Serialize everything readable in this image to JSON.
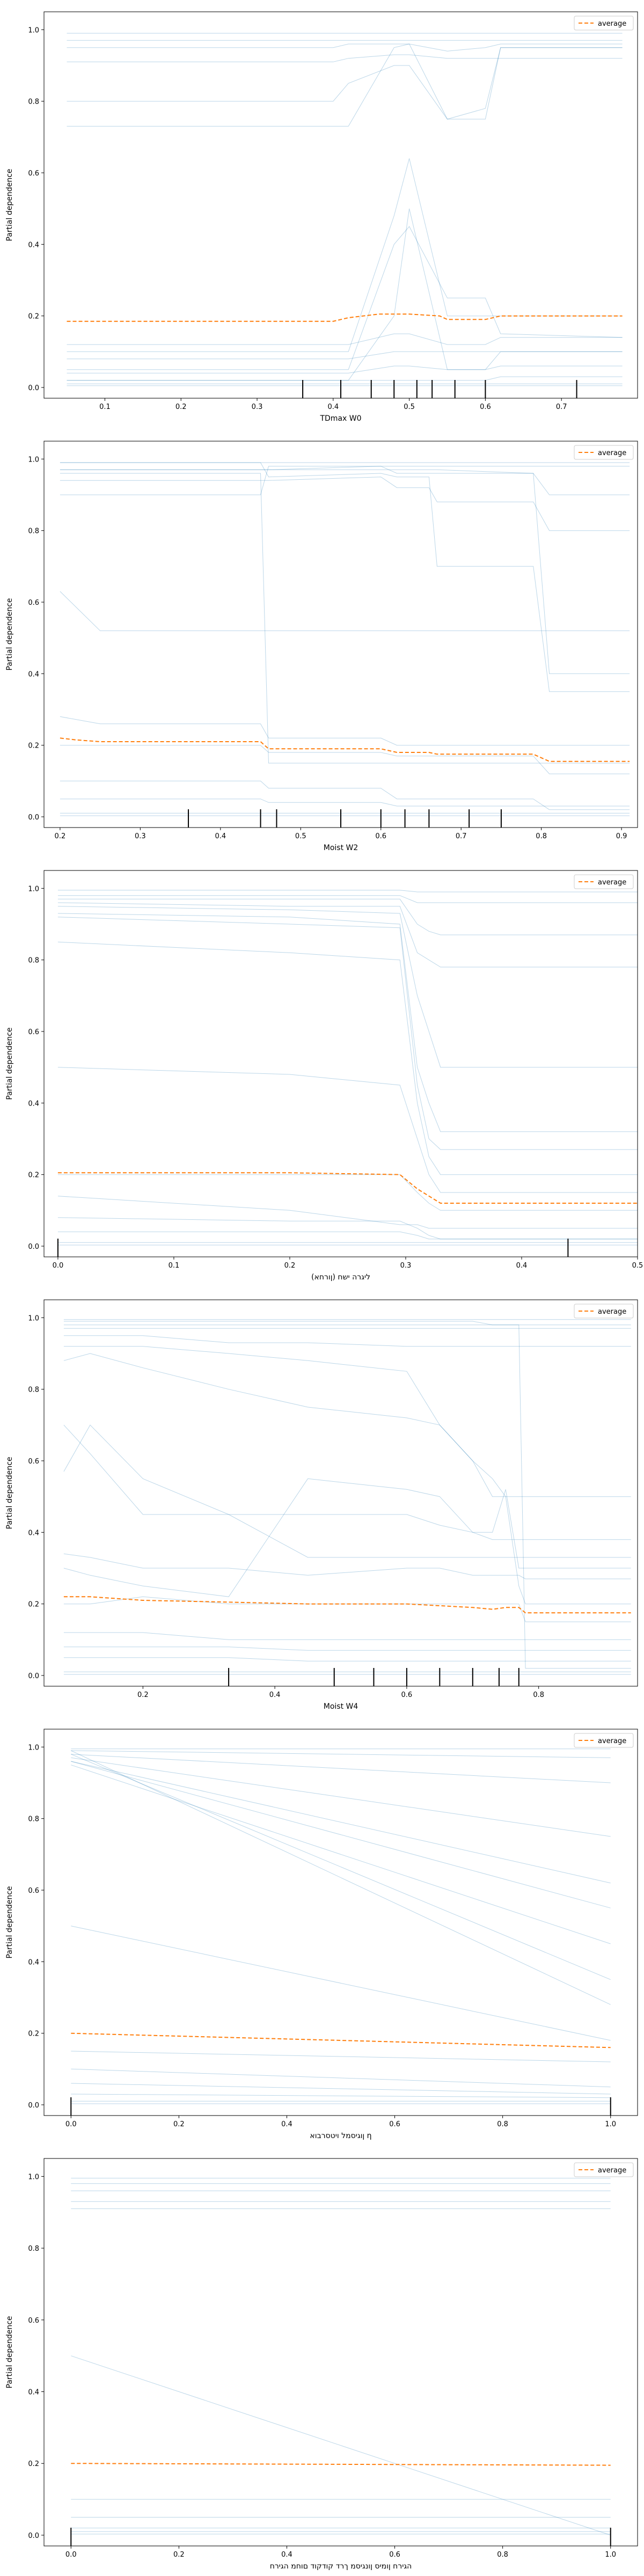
{
  "chart_data": [
    {
      "type": "line",
      "xlabel": "TDmax W0",
      "ylabel": "Partial dependence",
      "xlim": [
        0.02,
        0.8
      ],
      "ylim": [
        -0.03,
        1.05
      ],
      "xticks": [
        "0.1",
        "0.2",
        "0.3",
        "0.4",
        "0.5",
        "0.6",
        "0.7"
      ],
      "yticks": [
        "0.0",
        "0.2",
        "0.4",
        "0.6",
        "0.8",
        "1.0"
      ],
      "legend": {
        "position": "top-right",
        "label": "average"
      },
      "colors": {
        "ice": "#1f77b4",
        "average": "#ff7f0e",
        "rug": "#000000"
      },
      "rug": [
        0.36,
        0.41,
        0.45,
        0.48,
        0.51,
        0.53,
        0.56,
        0.6,
        0.72
      ],
      "ice_x": [
        0.05,
        0.4,
        0.42,
        0.48,
        0.5,
        0.55,
        0.6,
        0.62,
        0.78
      ],
      "ice_curves": [
        [
          0.99,
          0.99,
          0.99,
          0.99,
          0.99,
          0.99,
          0.99,
          0.99,
          0.99
        ],
        [
          0.97,
          0.97,
          0.97,
          0.97,
          0.97,
          0.97,
          0.97,
          0.97,
          0.97
        ],
        [
          0.95,
          0.95,
          0.96,
          0.96,
          0.96,
          0.94,
          0.95,
          0.96,
          0.96
        ],
        [
          0.91,
          0.91,
          0.92,
          0.93,
          0.93,
          0.92,
          0.92,
          0.92,
          0.92
        ],
        [
          0.8,
          0.8,
          0.85,
          0.9,
          0.9,
          0.75,
          0.78,
          0.95,
          0.95
        ],
        [
          0.73,
          0.73,
          0.73,
          0.95,
          0.96,
          0.75,
          0.75,
          0.95,
          0.95
        ],
        [
          0.1,
          0.1,
          0.1,
          0.48,
          0.64,
          0.2,
          0.2,
          0.2,
          0.2
        ],
        [
          0.05,
          0.05,
          0.05,
          0.4,
          0.45,
          0.25,
          0.25,
          0.15,
          0.14
        ],
        [
          0.02,
          0.02,
          0.02,
          0.2,
          0.5,
          0.05,
          0.05,
          0.1,
          0.1
        ],
        [
          0.08,
          0.08,
          0.08,
          0.1,
          0.1,
          0.1,
          0.1,
          0.1,
          0.1
        ],
        [
          0.12,
          0.12,
          0.12,
          0.15,
          0.15,
          0.12,
          0.12,
          0.14,
          0.14
        ],
        [
          0.04,
          0.04,
          0.04,
          0.06,
          0.06,
          0.05,
          0.05,
          0.06,
          0.06
        ],
        [
          0.01,
          0.01,
          0.01,
          0.01,
          0.01,
          0.01,
          0.01,
          0.01,
          0.01
        ],
        [
          0.005,
          0.005,
          0.005,
          0.005,
          0.005,
          0.005,
          0.005,
          0.005,
          0.005
        ],
        [
          0.02,
          0.02,
          0.02,
          0.02,
          0.02,
          0.02,
          0.02,
          0.03,
          0.03
        ]
      ],
      "average": {
        "x": [
          0.05,
          0.2,
          0.4,
          0.42,
          0.46,
          0.5,
          0.54,
          0.55,
          0.6,
          0.62,
          0.78
        ],
        "y": [
          0.185,
          0.185,
          0.185,
          0.195,
          0.205,
          0.205,
          0.2,
          0.19,
          0.19,
          0.2,
          0.2
        ]
      }
    },
    {
      "type": "line",
      "xlabel": "Moist W2",
      "ylabel": "Partial dependence",
      "xlim": [
        0.18,
        0.92
      ],
      "ylim": [
        -0.03,
        1.05
      ],
      "xticks": [
        "0.2",
        "0.3",
        "0.4",
        "0.5",
        "0.6",
        "0.7",
        "0.8",
        "0.9"
      ],
      "yticks": [
        "0.0",
        "0.2",
        "0.4",
        "0.6",
        "0.8",
        "1.0"
      ],
      "legend": {
        "position": "top-right",
        "label": "average"
      },
      "colors": {
        "ice": "#1f77b4",
        "average": "#ff7f0e",
        "rug": "#000000"
      },
      "rug": [
        0.36,
        0.45,
        0.47,
        0.55,
        0.6,
        0.63,
        0.66,
        0.71,
        0.75
      ],
      "ice_x": [
        0.2,
        0.25,
        0.45,
        0.46,
        0.6,
        0.62,
        0.66,
        0.67,
        0.79,
        0.81,
        0.91
      ],
      "ice_curves": [
        [
          0.99,
          0.99,
          0.99,
          0.99,
          0.99,
          0.99,
          0.99,
          0.99,
          0.99,
          0.99,
          0.99
        ],
        [
          0.97,
          0.97,
          0.97,
          0.97,
          0.98,
          0.96,
          0.96,
          0.96,
          0.96,
          0.9,
          0.9
        ],
        [
          0.94,
          0.94,
          0.94,
          0.94,
          0.95,
          0.92,
          0.92,
          0.88,
          0.88,
          0.8,
          0.8
        ],
        [
          0.9,
          0.9,
          0.9,
          0.98,
          0.98,
          0.98,
          0.98,
          0.98,
          0.98,
          0.98,
          0.98
        ],
        [
          0.63,
          0.52,
          0.52,
          0.52,
          0.52,
          0.52,
          0.52,
          0.52,
          0.52,
          0.52,
          0.52
        ],
        [
          0.28,
          0.26,
          0.26,
          0.22,
          0.22,
          0.2,
          0.2,
          0.2,
          0.2,
          0.2,
          0.2
        ],
        [
          0.2,
          0.2,
          0.2,
          0.18,
          0.18,
          0.17,
          0.17,
          0.17,
          0.17,
          0.12,
          0.12
        ],
        [
          0.99,
          0.99,
          0.99,
          0.95,
          0.96,
          0.95,
          0.95,
          0.7,
          0.7,
          0.35,
          0.35
        ],
        [
          0.96,
          0.96,
          0.96,
          0.15,
          0.15,
          0.15,
          0.15,
          0.15,
          0.15,
          0.15,
          0.15
        ],
        [
          0.97,
          0.97,
          0.97,
          0.97,
          0.97,
          0.97,
          0.97,
          0.97,
          0.96,
          0.4,
          0.4
        ],
        [
          0.1,
          0.1,
          0.1,
          0.08,
          0.08,
          0.05,
          0.05,
          0.05,
          0.05,
          0.02,
          0.02
        ],
        [
          0.05,
          0.05,
          0.05,
          0.04,
          0.04,
          0.03,
          0.03,
          0.03,
          0.03,
          0.03,
          0.03
        ],
        [
          0.01,
          0.01,
          0.01,
          0.01,
          0.01,
          0.01,
          0.01,
          0.01,
          0.01,
          0.01,
          0.01
        ],
        [
          0.003,
          0.003,
          0.003,
          0.003,
          0.003,
          0.003,
          0.003,
          0.003,
          0.003,
          0.003,
          0.003
        ]
      ],
      "average": {
        "x": [
          0.2,
          0.22,
          0.25,
          0.45,
          0.46,
          0.6,
          0.62,
          0.66,
          0.67,
          0.79,
          0.81,
          0.91
        ],
        "y": [
          0.22,
          0.215,
          0.21,
          0.21,
          0.19,
          0.19,
          0.18,
          0.18,
          0.175,
          0.175,
          0.155,
          0.155
        ]
      }
    },
    {
      "type": "line",
      "xlabel": "ליגרה ישח (ןורחא)",
      "ylabel": "Partial dependence",
      "xlim": [
        -0.012,
        0.5
      ],
      "ylim": [
        -0.03,
        1.05
      ],
      "xticks": [
        "0.0",
        "0.1",
        "0.2",
        "0.3",
        "0.4",
        "0.5"
      ],
      "yticks": [
        "0.0",
        "0.2",
        "0.4",
        "0.6",
        "0.8",
        "1.0"
      ],
      "legend": {
        "position": "top-right",
        "label": "average"
      },
      "colors": {
        "ice": "#1f77b4",
        "average": "#ff7f0e",
        "rug": "#000000"
      },
      "rug": [
        0.0,
        0.44
      ],
      "ice_x": [
        0.0,
        0.2,
        0.295,
        0.31,
        0.32,
        0.33,
        0.5
      ],
      "ice_curves": [
        [
          0.995,
          0.995,
          0.995,
          0.99,
          0.99,
          0.99,
          0.99
        ],
        [
          0.98,
          0.98,
          0.98,
          0.96,
          0.96,
          0.96,
          0.96
        ],
        [
          0.97,
          0.97,
          0.97,
          0.9,
          0.88,
          0.87,
          0.87
        ],
        [
          0.96,
          0.95,
          0.95,
          0.82,
          0.8,
          0.78,
          0.78
        ],
        [
          0.95,
          0.94,
          0.93,
          0.7,
          0.6,
          0.5,
          0.5
        ],
        [
          0.93,
          0.92,
          0.9,
          0.5,
          0.4,
          0.32,
          0.32
        ],
        [
          0.92,
          0.9,
          0.89,
          0.45,
          0.3,
          0.27,
          0.27
        ],
        [
          0.85,
          0.82,
          0.8,
          0.4,
          0.25,
          0.2,
          0.2
        ],
        [
          0.5,
          0.48,
          0.45,
          0.3,
          0.2,
          0.15,
          0.15
        ],
        [
          0.2,
          0.2,
          0.2,
          0.15,
          0.12,
          0.1,
          0.1
        ],
        [
          0.14,
          0.1,
          0.06,
          0.06,
          0.05,
          0.05,
          0.05
        ],
        [
          0.08,
          0.07,
          0.07,
          0.05,
          0.03,
          0.02,
          0.02
        ],
        [
          0.04,
          0.04,
          0.04,
          0.03,
          0.02,
          0.02,
          0.02
        ],
        [
          0.01,
          0.01,
          0.01,
          0.01,
          0.01,
          0.01,
          0.01
        ],
        [
          0.003,
          0.003,
          0.003,
          0.003,
          0.003,
          0.003,
          0.003
        ]
      ],
      "average": {
        "x": [
          0.0,
          0.2,
          0.295,
          0.31,
          0.33,
          0.5
        ],
        "y": [
          0.205,
          0.205,
          0.2,
          0.16,
          0.12,
          0.12
        ]
      }
    },
    {
      "type": "line",
      "xlabel": "Moist W4",
      "ylabel": "Partial dependence",
      "xlim": [
        0.05,
        0.95
      ],
      "ylim": [
        -0.03,
        1.05
      ],
      "xticks": [
        "0.2",
        "0.4",
        "0.6",
        "0.8"
      ],
      "yticks": [
        "0.0",
        "0.2",
        "0.4",
        "0.6",
        "0.8",
        "1.0"
      ],
      "legend": {
        "position": "top-right",
        "label": "average"
      },
      "colors": {
        "ice": "#1f77b4",
        "average": "#ff7f0e",
        "rug": "#000000"
      },
      "rug": [
        0.33,
        0.49,
        0.55,
        0.6,
        0.65,
        0.7,
        0.74,
        0.77
      ],
      "ice_x": [
        0.08,
        0.12,
        0.2,
        0.33,
        0.45,
        0.6,
        0.65,
        0.7,
        0.73,
        0.75,
        0.77,
        0.78,
        0.94
      ],
      "ice_curves": [
        [
          0.995,
          0.995,
          0.995,
          0.995,
          0.995,
          0.995,
          0.995,
          0.995,
          0.995,
          0.995,
          0.995,
          0.995,
          0.995
        ],
        [
          0.98,
          0.98,
          0.98,
          0.98,
          0.98,
          0.98,
          0.98,
          0.98,
          0.98,
          0.98,
          0.98,
          0.98,
          0.98
        ],
        [
          0.97,
          0.97,
          0.97,
          0.97,
          0.97,
          0.97,
          0.97,
          0.97,
          0.97,
          0.97,
          0.97,
          0.97,
          0.97
        ],
        [
          0.95,
          0.95,
          0.95,
          0.93,
          0.93,
          0.92,
          0.92,
          0.92,
          0.92,
          0.92,
          0.92,
          0.92,
          0.92
        ],
        [
          0.92,
          0.92,
          0.92,
          0.9,
          0.88,
          0.85,
          0.7,
          0.6,
          0.5,
          0.5,
          0.5,
          0.5,
          0.5
        ],
        [
          0.88,
          0.9,
          0.86,
          0.8,
          0.75,
          0.72,
          0.7,
          0.6,
          0.55,
          0.5,
          0.25,
          0.2,
          0.2
        ],
        [
          0.7,
          0.62,
          0.45,
          0.45,
          0.45,
          0.45,
          0.42,
          0.4,
          0.38,
          0.38,
          0.38,
          0.38,
          0.38
        ],
        [
          0.57,
          0.7,
          0.55,
          0.45,
          0.33,
          0.33,
          0.33,
          0.33,
          0.33,
          0.33,
          0.33,
          0.33,
          0.33
        ],
        [
          0.34,
          0.33,
          0.3,
          0.3,
          0.28,
          0.3,
          0.3,
          0.28,
          0.28,
          0.28,
          0.28,
          0.27,
          0.27
        ],
        [
          0.3,
          0.28,
          0.25,
          0.22,
          0.55,
          0.52,
          0.5,
          0.4,
          0.4,
          0.52,
          0.3,
          0.3,
          0.3
        ],
        [
          0.2,
          0.2,
          0.22,
          0.2,
          0.2,
          0.2,
          0.2,
          0.2,
          0.2,
          0.2,
          0.2,
          0.15,
          0.15
        ],
        [
          0.12,
          0.12,
          0.12,
          0.1,
          0.1,
          0.1,
          0.1,
          0.1,
          0.1,
          0.1,
          0.1,
          0.1,
          0.1
        ],
        [
          0.08,
          0.08,
          0.08,
          0.08,
          0.07,
          0.07,
          0.07,
          0.07,
          0.07,
          0.07,
          0.07,
          0.07,
          0.07
        ],
        [
          0.05,
          0.05,
          0.05,
          0.05,
          0.04,
          0.04,
          0.04,
          0.04,
          0.04,
          0.04,
          0.04,
          0.04,
          0.04
        ],
        [
          0.99,
          0.99,
          0.99,
          0.99,
          0.99,
          0.99,
          0.99,
          0.99,
          0.98,
          0.98,
          0.98,
          0.02,
          0.02
        ],
        [
          0.01,
          0.01,
          0.01,
          0.01,
          0.01,
          0.01,
          0.01,
          0.01,
          0.01,
          0.01,
          0.01,
          0.01,
          0.01
        ],
        [
          0.003,
          0.003,
          0.003,
          0.003,
          0.003,
          0.003,
          0.003,
          0.003,
          0.003,
          0.003,
          0.003,
          0.003,
          0.003
        ]
      ],
      "average": {
        "x": [
          0.08,
          0.12,
          0.2,
          0.33,
          0.45,
          0.6,
          0.65,
          0.7,
          0.73,
          0.75,
          0.77,
          0.78,
          0.94
        ],
        "y": [
          0.22,
          0.22,
          0.21,
          0.205,
          0.2,
          0.2,
          0.195,
          0.19,
          0.185,
          0.19,
          0.19,
          0.175,
          0.175
        ]
      }
    },
    {
      "type": "line",
      "xlabel": "ןוגיסמל ויטסרבוא η",
      "ylabel": "Partial dependence",
      "xlim": [
        -0.05,
        1.05
      ],
      "ylim": [
        -0.03,
        1.05
      ],
      "xticks": [
        "0.0",
        "0.2",
        "0.4",
        "0.6",
        "0.8",
        "1.0"
      ],
      "yticks": [
        "0.0",
        "0.2",
        "0.4",
        "0.6",
        "0.8",
        "1.0"
      ],
      "legend": {
        "position": "top-right",
        "label": "average"
      },
      "colors": {
        "ice": "#1f77b4",
        "average": "#ff7f0e",
        "rug": "#000000"
      },
      "rug": [
        0.0,
        1.0
      ],
      "ice_x": [
        0.0,
        1.0
      ],
      "ice_curves": [
        [
          0.995,
          0.995
        ],
        [
          0.99,
          0.97
        ],
        [
          0.98,
          0.9
        ],
        [
          0.97,
          0.75
        ],
        [
          0.96,
          0.55
        ],
        [
          0.95,
          0.45
        ],
        [
          0.98,
          0.35
        ],
        [
          0.99,
          0.28
        ],
        [
          0.96,
          0.62
        ],
        [
          0.5,
          0.18
        ],
        [
          0.15,
          0.12
        ],
        [
          0.1,
          0.05
        ],
        [
          0.06,
          0.03
        ],
        [
          0.03,
          0.02
        ],
        [
          0.01,
          0.01
        ],
        [
          0.003,
          0.003
        ]
      ],
      "average": {
        "x": [
          0.0,
          1.0
        ],
        "y": [
          0.2,
          0.16
        ]
      }
    },
    {
      "type": "line",
      "xlabel": "הגירח ןומיס ןונגיסמ ךרד קודקוד םוחמ הגירח",
      "ylabel": "Partial dependence",
      "xlim": [
        -0.05,
        1.05
      ],
      "ylim": [
        -0.03,
        1.05
      ],
      "xticks": [
        "0.0",
        "0.2",
        "0.4",
        "0.6",
        "0.8",
        "1.0"
      ],
      "yticks": [
        "0.0",
        "0.2",
        "0.4",
        "0.6",
        "0.8",
        "1.0"
      ],
      "legend": {
        "position": "top-right",
        "label": "average"
      },
      "colors": {
        "ice": "#1f77b4",
        "average": "#ff7f0e",
        "rug": "#000000"
      },
      "rug": [
        0.0,
        1.0
      ],
      "ice_x": [
        0.0,
        1.0
      ],
      "ice_curves": [
        [
          0.995,
          0.995
        ],
        [
          0.98,
          0.98
        ],
        [
          0.96,
          0.96
        ],
        [
          0.93,
          0.93
        ],
        [
          0.91,
          0.91
        ],
        [
          0.5,
          0.0
        ],
        [
          0.1,
          0.1
        ],
        [
          0.05,
          0.05
        ],
        [
          0.02,
          0.02
        ],
        [
          0.01,
          0.01
        ],
        [
          0.003,
          0.003
        ]
      ],
      "average": {
        "x": [
          0.0,
          1.0
        ],
        "y": [
          0.2,
          0.195
        ]
      }
    }
  ]
}
